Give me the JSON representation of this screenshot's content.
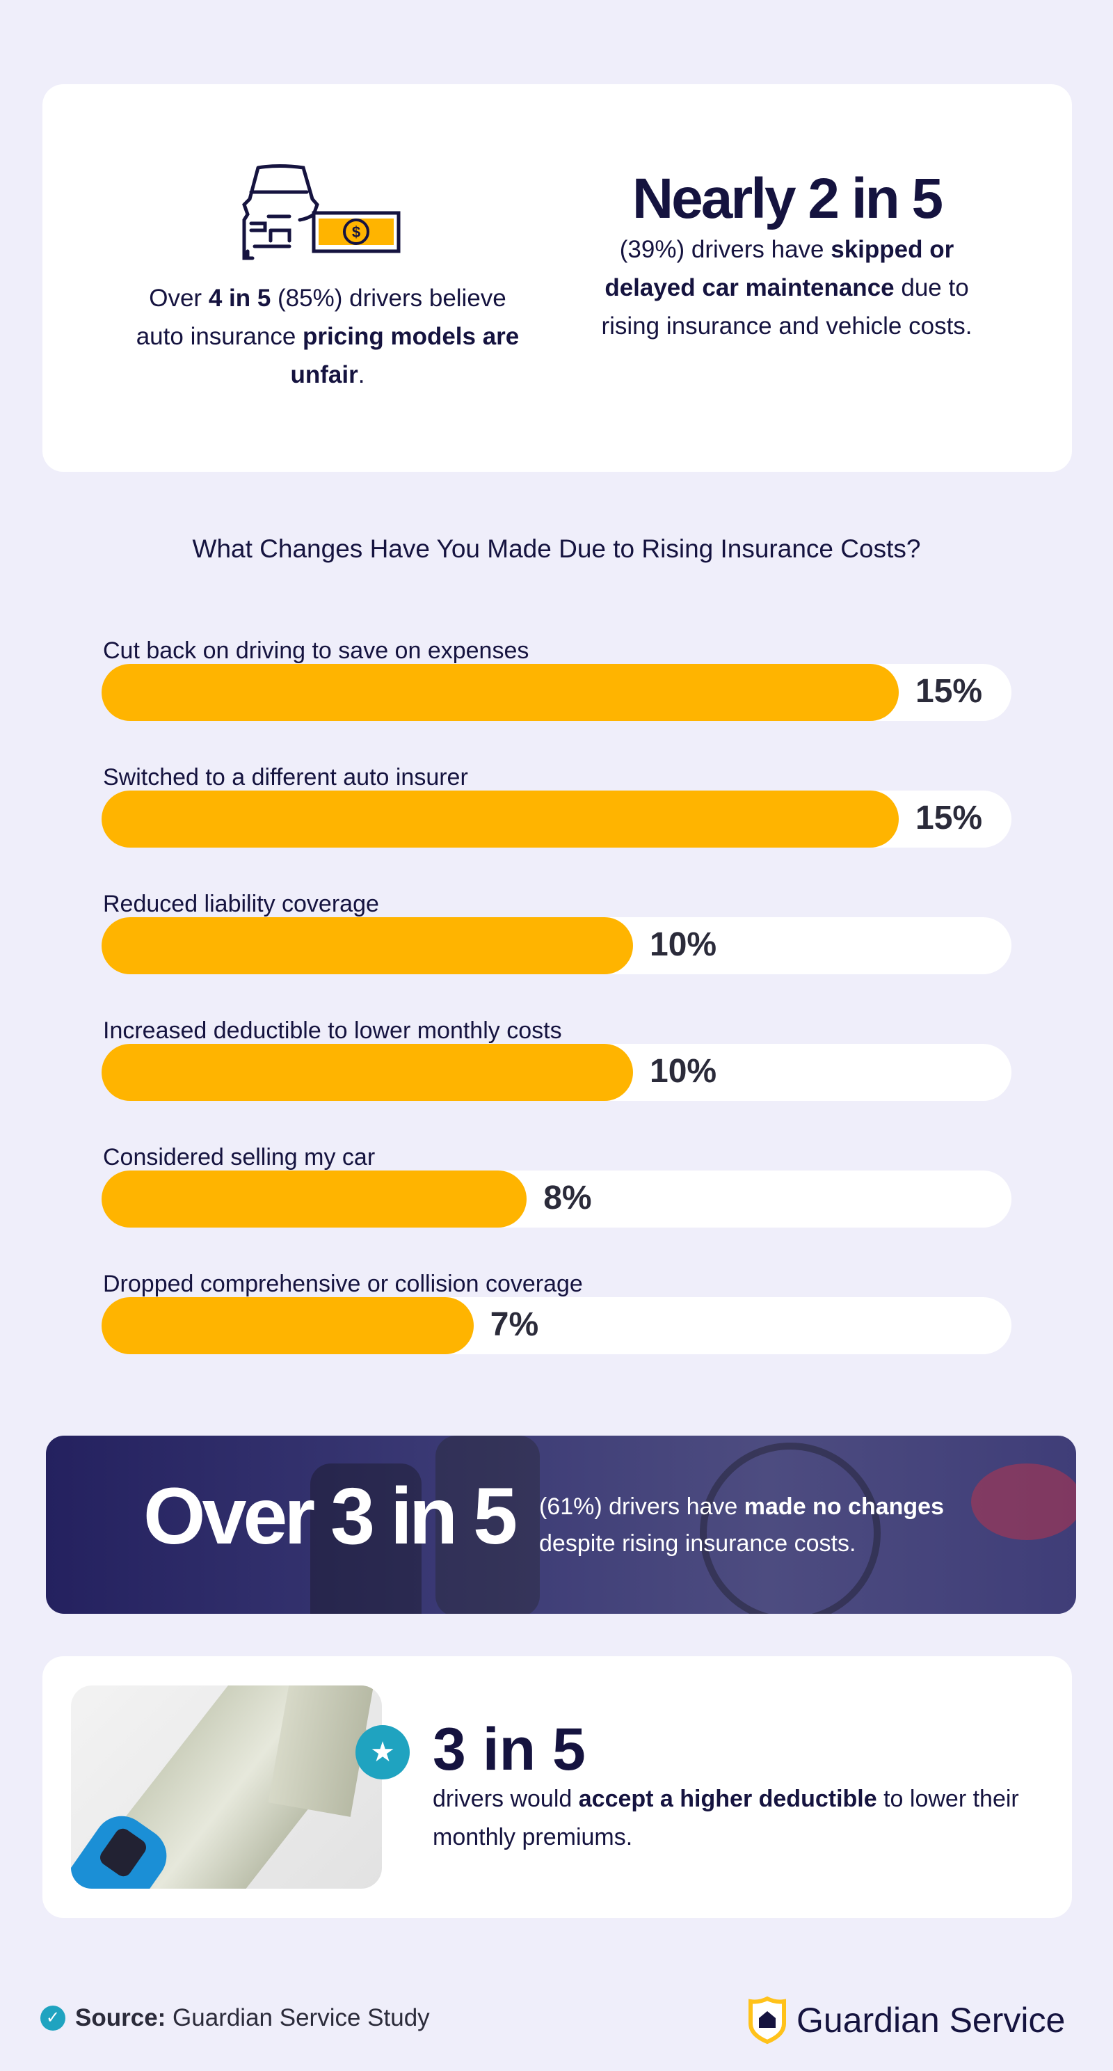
{
  "top_card": {
    "left": {
      "icon": "car-money-icon",
      "pre": "Over ",
      "b1": "4 in 5",
      "mid": " (85%) drivers believe auto insurance ",
      "b2": "pricing models are unfair",
      "post": "."
    },
    "right": {
      "headline": "Nearly 2 in 5",
      "pre": "(39%) drivers have ",
      "b1": "skipped or delayed car maintenance",
      "post": " due to rising insurance and vehicle costs."
    }
  },
  "chart_data": {
    "type": "bar",
    "orientation": "horizontal",
    "title": "What Changes Have You Made Due to Rising Insurance Costs?",
    "categories": [
      "Cut back on driving to save on expenses",
      "Switched to a different auto insurer",
      "Reduced liability coverage",
      "Increased deductible to lower monthly costs",
      "Considered selling my car",
      "Dropped comprehensive or collision coverage"
    ],
    "values": [
      15,
      15,
      10,
      10,
      8,
      7
    ],
    "labels": [
      "15%",
      "15%",
      "10%",
      "10%",
      "8%",
      "7%"
    ],
    "unit": "%",
    "bar_color": "#ffb400",
    "track_color": "#ffffff"
  },
  "banner": {
    "headline": "Over 3 in 5",
    "pre": "(61%) drivers have ",
    "b1": "made no changes",
    "post": " despite rising insurance costs."
  },
  "bottom_card": {
    "badge_icon": "star-icon",
    "headline": "3 in 5",
    "pre": "drivers would ",
    "b1": "accept a higher deductible",
    "post": " to lower their monthly premiums."
  },
  "footer": {
    "source_label": "Source:",
    "source_text": " Guardian Service Study",
    "brand": "Guardian Service"
  },
  "colors": {
    "background": "#efeefa",
    "text": "#15133f",
    "accent_yellow": "#ffb400",
    "accent_teal": "#1fa3c0",
    "banner": "#24215f"
  }
}
